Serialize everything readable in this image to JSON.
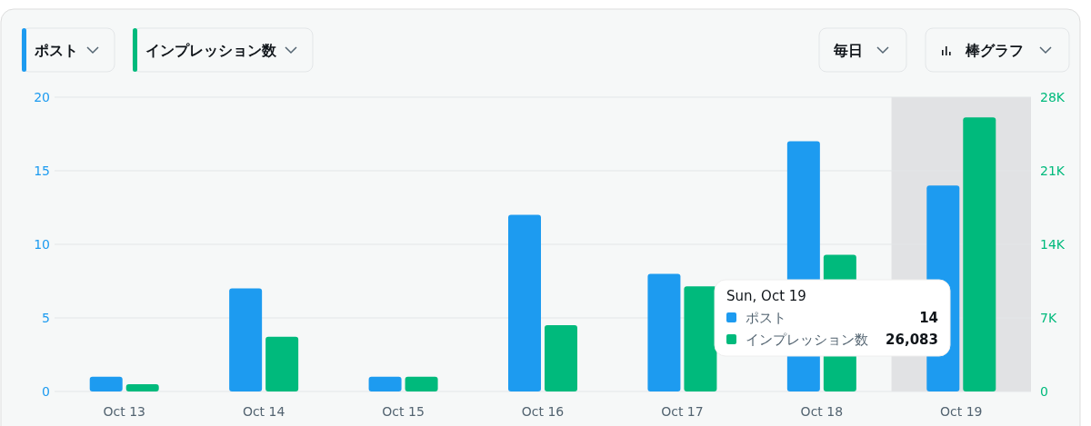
{
  "chart_data": {
    "type": "bar",
    "categories": [
      "Oct 13",
      "Oct 14",
      "Oct 15",
      "Oct 16",
      "Oct 17",
      "Oct 18",
      "Oct 19"
    ],
    "series": [
      {
        "name": "ポスト",
        "color": "#1d9bf0",
        "values": [
          1,
          7,
          1,
          12,
          8,
          17,
          14
        ]
      },
      {
        "name": "インプレッション数",
        "color": "#00ba7c",
        "axis": "y2",
        "values": [
          700,
          5200,
          1400,
          6300,
          10000,
          13000,
          26083
        ]
      }
    ],
    "ylim": [
      0,
      20
    ],
    "yticks": [
      0,
      5,
      10,
      15,
      20
    ],
    "y2lim": [
      0,
      28000
    ],
    "y2ticks": [
      {
        "value": 0,
        "label": "0"
      },
      {
        "value": 7000,
        "label": "7K"
      },
      {
        "value": 14000,
        "label": "14K"
      },
      {
        "value": 21000,
        "label": "21K"
      },
      {
        "value": 28000,
        "label": "28K"
      }
    ],
    "bands": [
      {
        "axis": "x",
        "from": "Oct 19",
        "to": "Oct 19",
        "color": "#e1e2e4"
      }
    ],
    "grid": "y",
    "legend": "bottom right",
    "annotations": [
      "毎日",
      "棒グラフ",
      "Sun, Oct 19",
      "14",
      "26,083"
    ]
  }
}
